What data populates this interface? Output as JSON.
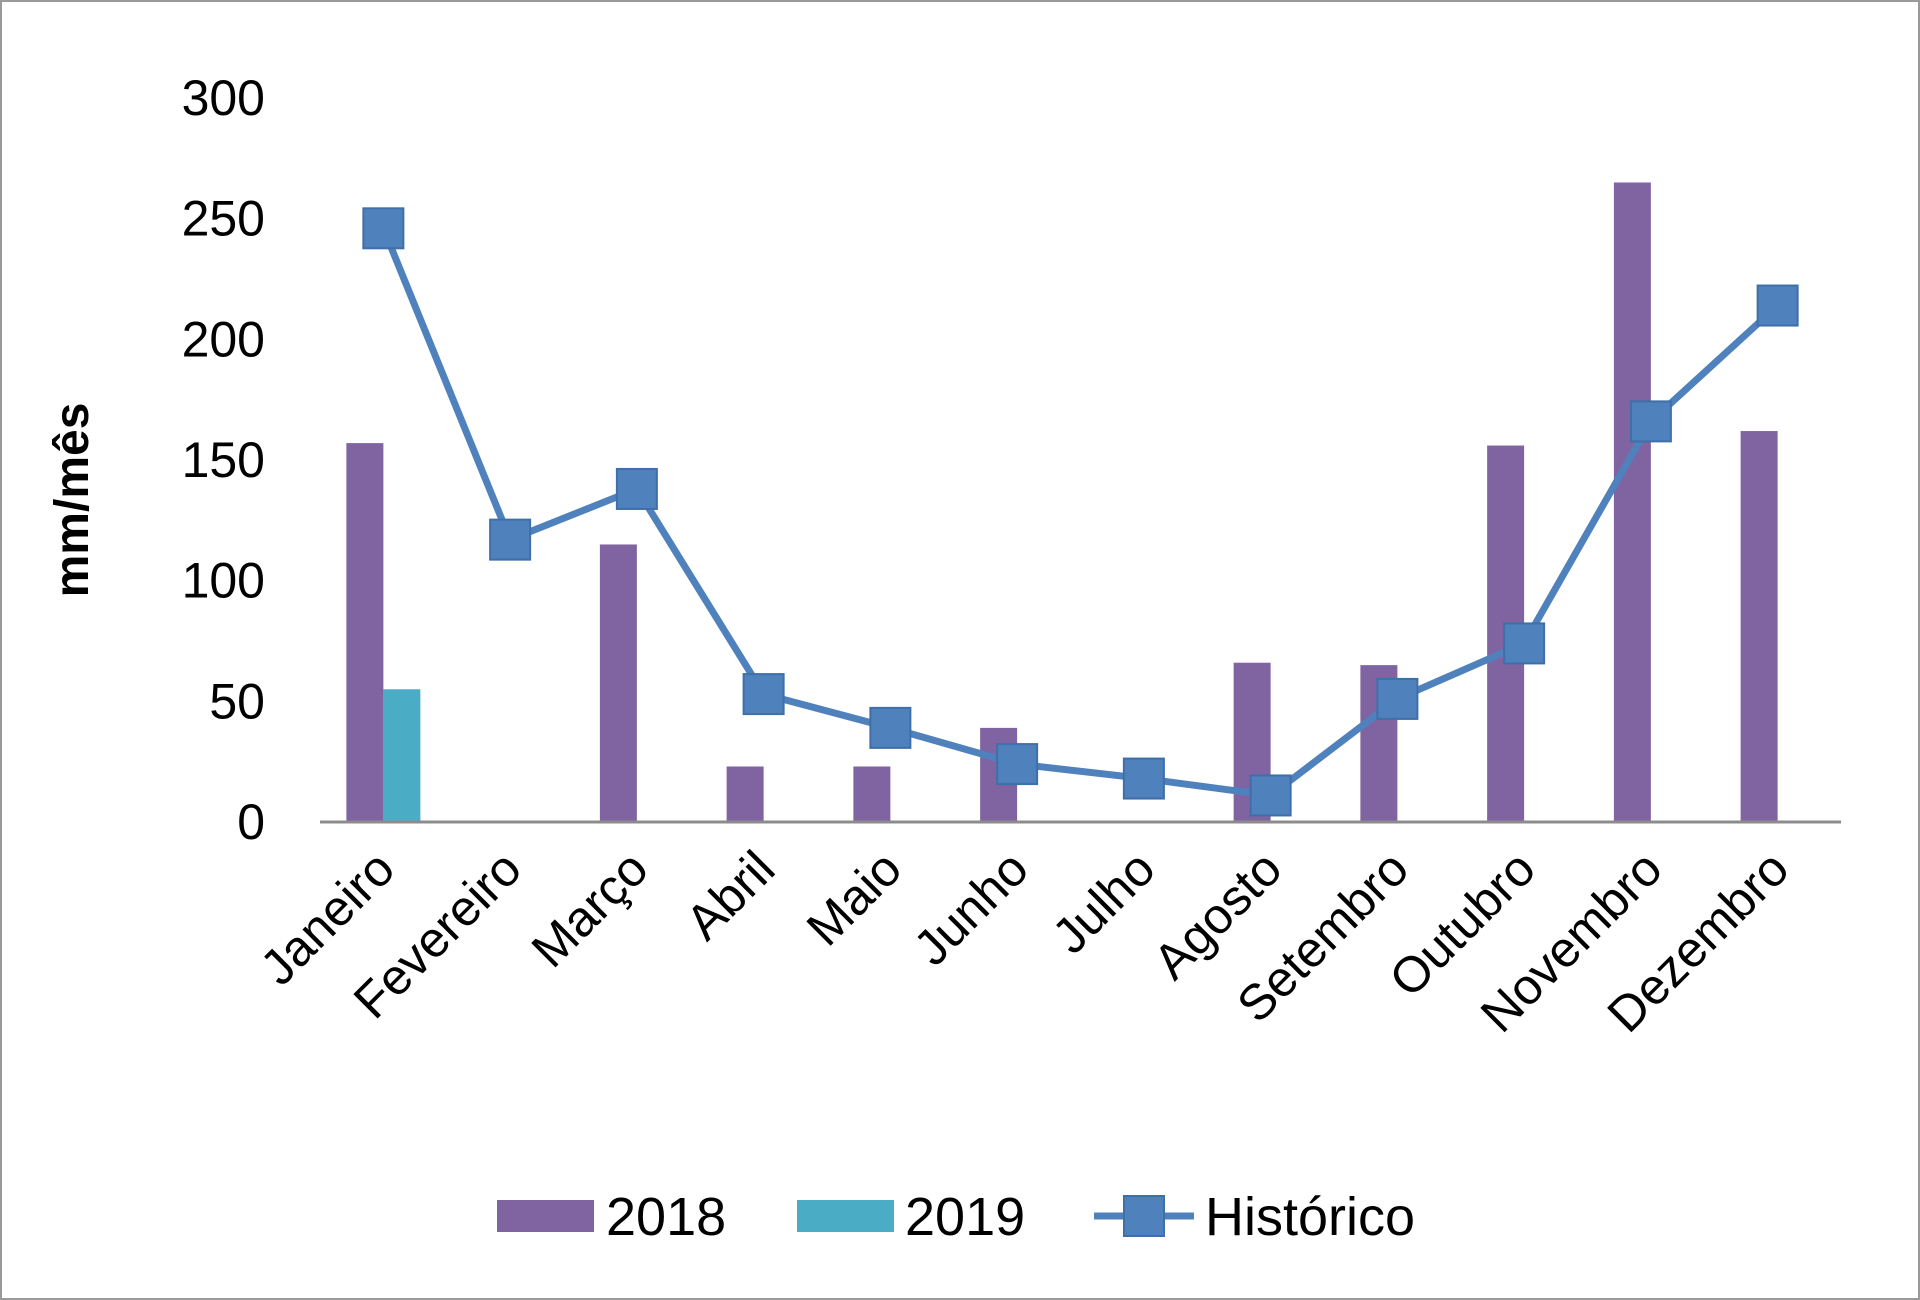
{
  "chart_data": {
    "type": "bar",
    "categories": [
      "Janeiro",
      "Fevereiro",
      "Março",
      "Abril",
      "Maio",
      "Junho",
      "Julho",
      "Agosto",
      "Setembro",
      "Outubro",
      "Novembro",
      "Dezembro"
    ],
    "series": [
      {
        "name": "2018",
        "type": "bar",
        "color": "#8064a2",
        "values": [
          157,
          0,
          115,
          23,
          23,
          39,
          0,
          66,
          65,
          156,
          265,
          162
        ]
      },
      {
        "name": "2019",
        "type": "bar",
        "color": "#4bacc6",
        "values": [
          55,
          0,
          0,
          0,
          0,
          0,
          0,
          0,
          0,
          0,
          0,
          0
        ]
      },
      {
        "name": "Histórico",
        "type": "line",
        "color": "#4f81bd",
        "marker": "square",
        "values": [
          246,
          117,
          138,
          53,
          39,
          24,
          18,
          11,
          51,
          74,
          166,
          214
        ]
      }
    ],
    "yticks": [
      0,
      50,
      100,
      150,
      200,
      250,
      300
    ],
    "ylim": [
      0,
      300
    ],
    "ylabel": "mm/mês",
    "xlabel": "",
    "title": "",
    "grid": false,
    "legend": "bottom"
  }
}
